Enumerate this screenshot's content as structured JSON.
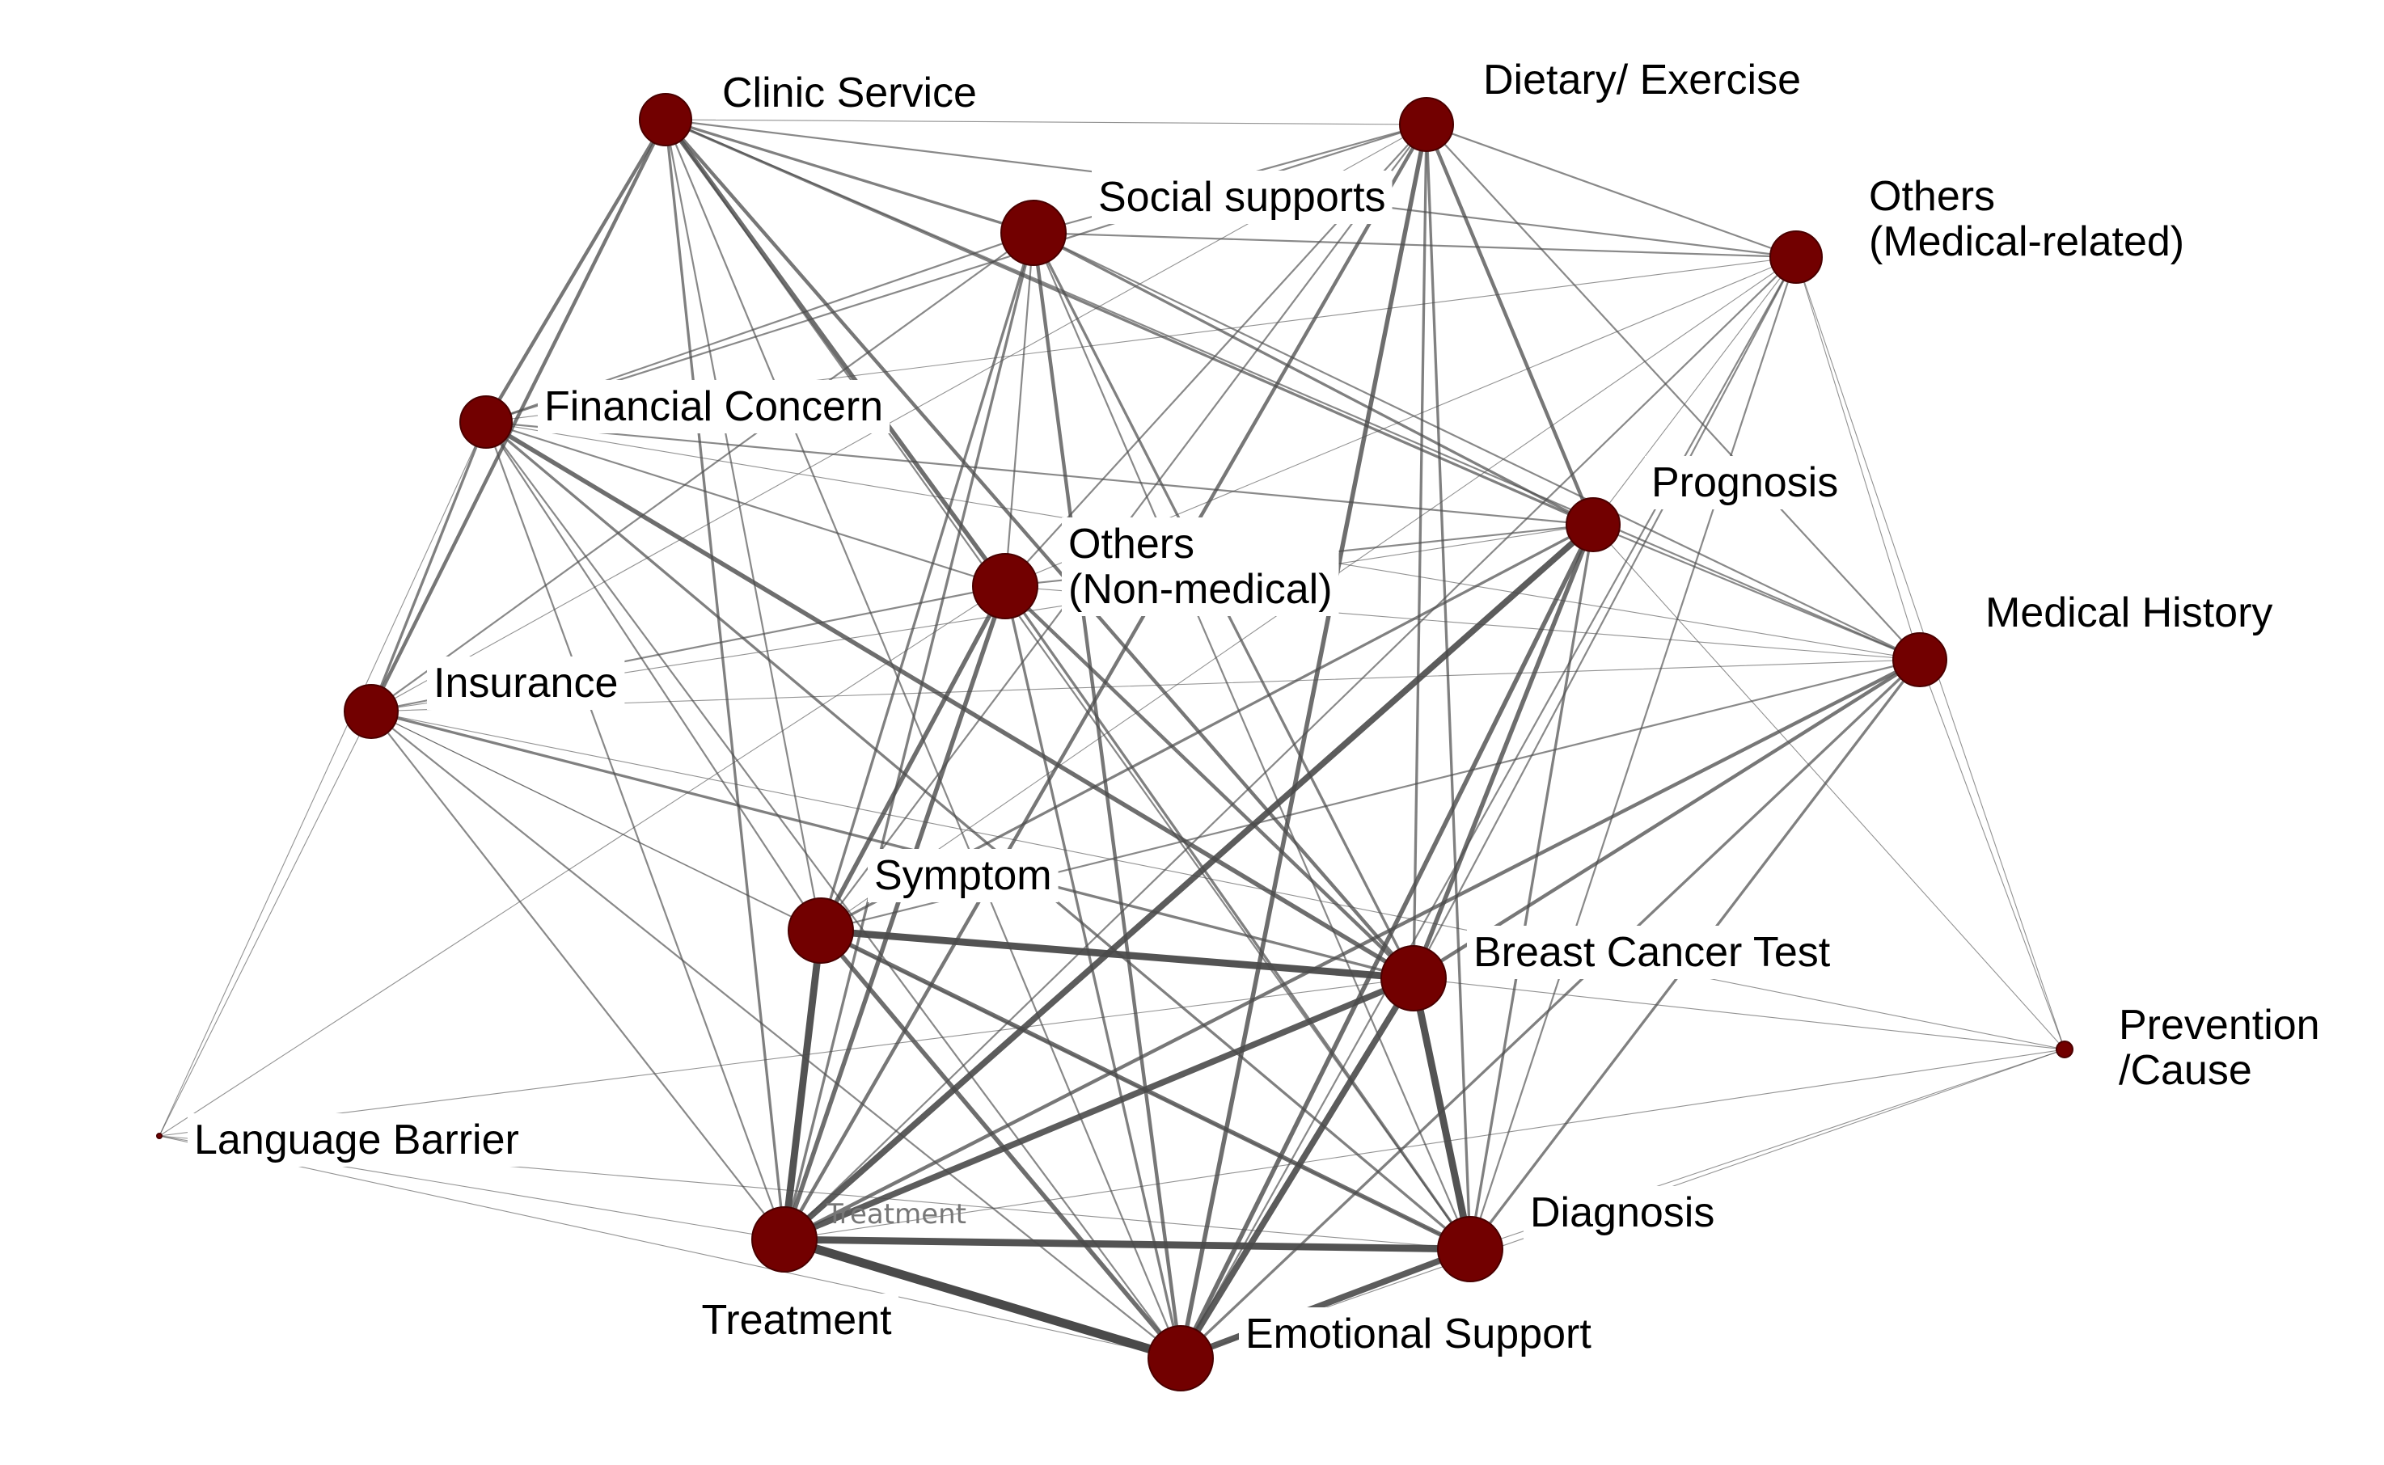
{
  "nodes": [
    {
      "id": "clinic",
      "label_lines": [
        "Clinic Service"
      ]
    },
    {
      "id": "dietary",
      "label_lines": [
        "Dietary/ Exercise"
      ]
    },
    {
      "id": "social",
      "label_lines": [
        "Social supports"
      ]
    },
    {
      "id": "others_med",
      "label_lines": [
        "Others",
        "(Medical-related)"
      ]
    },
    {
      "id": "financial",
      "label_lines": [
        "Financial Concern"
      ]
    },
    {
      "id": "prognosis",
      "label_lines": [
        "Prognosis"
      ]
    },
    {
      "id": "others_nonmed",
      "label_lines": [
        "Others",
        "(Non-medical)"
      ]
    },
    {
      "id": "medhist",
      "label_lines": [
        "Medical History"
      ]
    },
    {
      "id": "insurance",
      "label_lines": [
        "Insurance"
      ]
    },
    {
      "id": "symptom",
      "label_lines": [
        "Symptom"
      ]
    },
    {
      "id": "bctest",
      "label_lines": [
        "Breast Cancer Test"
      ]
    },
    {
      "id": "prevention",
      "label_lines": [
        "Prevention",
        "/Cause"
      ]
    },
    {
      "id": "language",
      "label_lines": [
        "Language Barrier"
      ]
    },
    {
      "id": "treatment",
      "label_lines": [
        "Treatment"
      ]
    },
    {
      "id": "diagnosis",
      "label_lines": [
        "Diagnosis"
      ]
    },
    {
      "id": "emotional",
      "label_lines": [
        "Emotional Support"
      ]
    }
  ],
  "inner_labels": [
    {
      "node": "treatment",
      "text": "Treatment"
    }
  ],
  "edges": [
    {
      "s": "treatment",
      "t": "emotional",
      "w": 10
    },
    {
      "s": "treatment",
      "t": "diagnosis",
      "w": 8
    },
    {
      "s": "treatment",
      "t": "bctest",
      "w": 7
    },
    {
      "s": "treatment",
      "t": "symptom",
      "w": 8
    },
    {
      "s": "treatment",
      "t": "prognosis",
      "w": 7
    },
    {
      "s": "treatment",
      "t": "others_nonmed",
      "w": 5
    },
    {
      "s": "treatment",
      "t": "medhist",
      "w": 4
    },
    {
      "s": "treatment",
      "t": "social",
      "w": 3
    },
    {
      "s": "treatment",
      "t": "clinic",
      "w": 3
    },
    {
      "s": "treatment",
      "t": "financial",
      "w": 2
    },
    {
      "s": "treatment",
      "t": "insurance",
      "w": 2
    },
    {
      "s": "treatment",
      "t": "dietary",
      "w": 4
    },
    {
      "s": "treatment",
      "t": "others_med",
      "w": 2
    },
    {
      "s": "treatment",
      "t": "language",
      "w": 1
    },
    {
      "s": "treatment",
      "t": "prevention",
      "w": 1
    },
    {
      "s": "symptom",
      "t": "bctest",
      "w": 8
    },
    {
      "s": "symptom",
      "t": "diagnosis",
      "w": 5
    },
    {
      "s": "symptom",
      "t": "emotional",
      "w": 5
    },
    {
      "s": "symptom",
      "t": "others_nonmed",
      "w": 5
    },
    {
      "s": "symptom",
      "t": "social",
      "w": 3
    },
    {
      "s": "symptom",
      "t": "prognosis",
      "w": 3
    },
    {
      "s": "symptom",
      "t": "medhist",
      "w": 2
    },
    {
      "s": "symptom",
      "t": "clinic",
      "w": 2
    },
    {
      "s": "symptom",
      "t": "financial",
      "w": 2
    },
    {
      "s": "symptom",
      "t": "insurance",
      "w": 1
    },
    {
      "s": "symptom",
      "t": "dietary",
      "w": 2
    },
    {
      "s": "symptom",
      "t": "others_med",
      "w": 1
    },
    {
      "s": "bctest",
      "t": "diagnosis",
      "w": 8
    },
    {
      "s": "bctest",
      "t": "emotional",
      "w": 7
    },
    {
      "s": "bctest",
      "t": "prognosis",
      "w": 5
    },
    {
      "s": "bctest",
      "t": "medhist",
      "w": 4
    },
    {
      "s": "bctest",
      "t": "clinic",
      "w": 4
    },
    {
      "s": "bctest",
      "t": "financial",
      "w": 5
    },
    {
      "s": "bctest",
      "t": "insurance",
      "w": 3
    },
    {
      "s": "bctest",
      "t": "social",
      "w": 3
    },
    {
      "s": "bctest",
      "t": "others_nonmed",
      "w": 4
    },
    {
      "s": "bctest",
      "t": "dietary",
      "w": 3
    },
    {
      "s": "bctest",
      "t": "others_med",
      "w": 2
    },
    {
      "s": "bctest",
      "t": "prevention",
      "w": 1
    },
    {
      "s": "bctest",
      "t": "language",
      "w": 1
    },
    {
      "s": "diagnosis",
      "t": "emotional",
      "w": 7
    },
    {
      "s": "diagnosis",
      "t": "prognosis",
      "w": 3
    },
    {
      "s": "diagnosis",
      "t": "medhist",
      "w": 3
    },
    {
      "s": "diagnosis",
      "t": "others_nonmed",
      "w": 3
    },
    {
      "s": "diagnosis",
      "t": "financial",
      "w": 3
    },
    {
      "s": "diagnosis",
      "t": "social",
      "w": 2
    },
    {
      "s": "diagnosis",
      "t": "dietary",
      "w": 3
    },
    {
      "s": "diagnosis",
      "t": "others_med",
      "w": 2
    },
    {
      "s": "diagnosis",
      "t": "insurance",
      "w": 1
    },
    {
      "s": "diagnosis",
      "t": "prevention",
      "w": 1
    },
    {
      "s": "diagnosis",
      "t": "clinic",
      "w": 2
    },
    {
      "s": "emotional",
      "t": "prognosis",
      "w": 5
    },
    {
      "s": "emotional",
      "t": "social",
      "w": 4
    },
    {
      "s": "emotional",
      "t": "dietary",
      "w": 5
    },
    {
      "s": "emotional",
      "t": "medhist",
      "w": 3
    },
    {
      "s": "emotional",
      "t": "others_nonmed",
      "w": 3
    },
    {
      "s": "emotional",
      "t": "financial",
      "w": 2
    },
    {
      "s": "emotional",
      "t": "insurance",
      "w": 2
    },
    {
      "s": "emotional",
      "t": "others_med",
      "w": 2
    },
    {
      "s": "emotional",
      "t": "clinic",
      "w": 2
    },
    {
      "s": "emotional",
      "t": "language",
      "w": 1
    },
    {
      "s": "clinic",
      "t": "financial",
      "w": 4
    },
    {
      "s": "clinic",
      "t": "insurance",
      "w": 4
    },
    {
      "s": "clinic",
      "t": "social",
      "w": 3
    },
    {
      "s": "clinic",
      "t": "dietary",
      "w": 1
    },
    {
      "s": "clinic",
      "t": "prognosis",
      "w": 3
    },
    {
      "s": "clinic",
      "t": "others_nonmed",
      "w": 5
    },
    {
      "s": "clinic",
      "t": "medhist",
      "w": 2
    },
    {
      "s": "clinic",
      "t": "others_med",
      "w": 2
    },
    {
      "s": "social",
      "t": "financial",
      "w": 2
    },
    {
      "s": "social",
      "t": "insurance",
      "w": 2
    },
    {
      "s": "social",
      "t": "dietary",
      "w": 2
    },
    {
      "s": "social",
      "t": "prognosis",
      "w": 3
    },
    {
      "s": "social",
      "t": "others_nonmed",
      "w": 2
    },
    {
      "s": "social",
      "t": "medhist",
      "w": 2
    },
    {
      "s": "social",
      "t": "others_med",
      "w": 2
    },
    {
      "s": "dietary",
      "t": "prognosis",
      "w": 4
    },
    {
      "s": "dietary",
      "t": "medhist",
      "w": 2
    },
    {
      "s": "dietary",
      "t": "others_med",
      "w": 2
    },
    {
      "s": "dietary",
      "t": "financial",
      "w": 2
    },
    {
      "s": "dietary",
      "t": "others_nonmed",
      "w": 2
    },
    {
      "s": "dietary",
      "t": "insurance",
      "w": 1
    },
    {
      "s": "others_med",
      "t": "medhist",
      "w": 1
    },
    {
      "s": "others_med",
      "t": "prognosis",
      "w": 1
    },
    {
      "s": "others_med",
      "t": "prevention",
      "w": 1
    },
    {
      "s": "others_med",
      "t": "others_nonmed",
      "w": 1
    },
    {
      "s": "others_med",
      "t": "financial",
      "w": 1
    },
    {
      "s": "financial",
      "t": "insurance",
      "w": 3
    },
    {
      "s": "financial",
      "t": "others_nonmed",
      "w": 2
    },
    {
      "s": "financial",
      "t": "prognosis",
      "w": 2
    },
    {
      "s": "financial",
      "t": "medhist",
      "w": 1
    },
    {
      "s": "financial",
      "t": "language",
      "w": 1
    },
    {
      "s": "prognosis",
      "t": "medhist",
      "w": 2
    },
    {
      "s": "prognosis",
      "t": "others_nonmed",
      "w": 2
    },
    {
      "s": "prognosis",
      "t": "insurance",
      "w": 1
    },
    {
      "s": "prognosis",
      "t": "prevention",
      "w": 1
    },
    {
      "s": "medhist",
      "t": "prevention",
      "w": 1
    },
    {
      "s": "medhist",
      "t": "insurance",
      "w": 1
    },
    {
      "s": "medhist",
      "t": "others_nonmed",
      "w": 1
    },
    {
      "s": "insurance",
      "t": "others_nonmed",
      "w": 2
    },
    {
      "s": "insurance",
      "t": "language",
      "w": 1
    },
    {
      "s": "language",
      "t": "others_nonmed",
      "w": 1
    },
    {
      "s": "language",
      "t": "diagnosis",
      "w": 1
    },
    {
      "s": "prevention",
      "t": "emotional",
      "w": 1
    },
    {
      "s": "prevention",
      "t": "insurance",
      "w": 1
    }
  ]
}
